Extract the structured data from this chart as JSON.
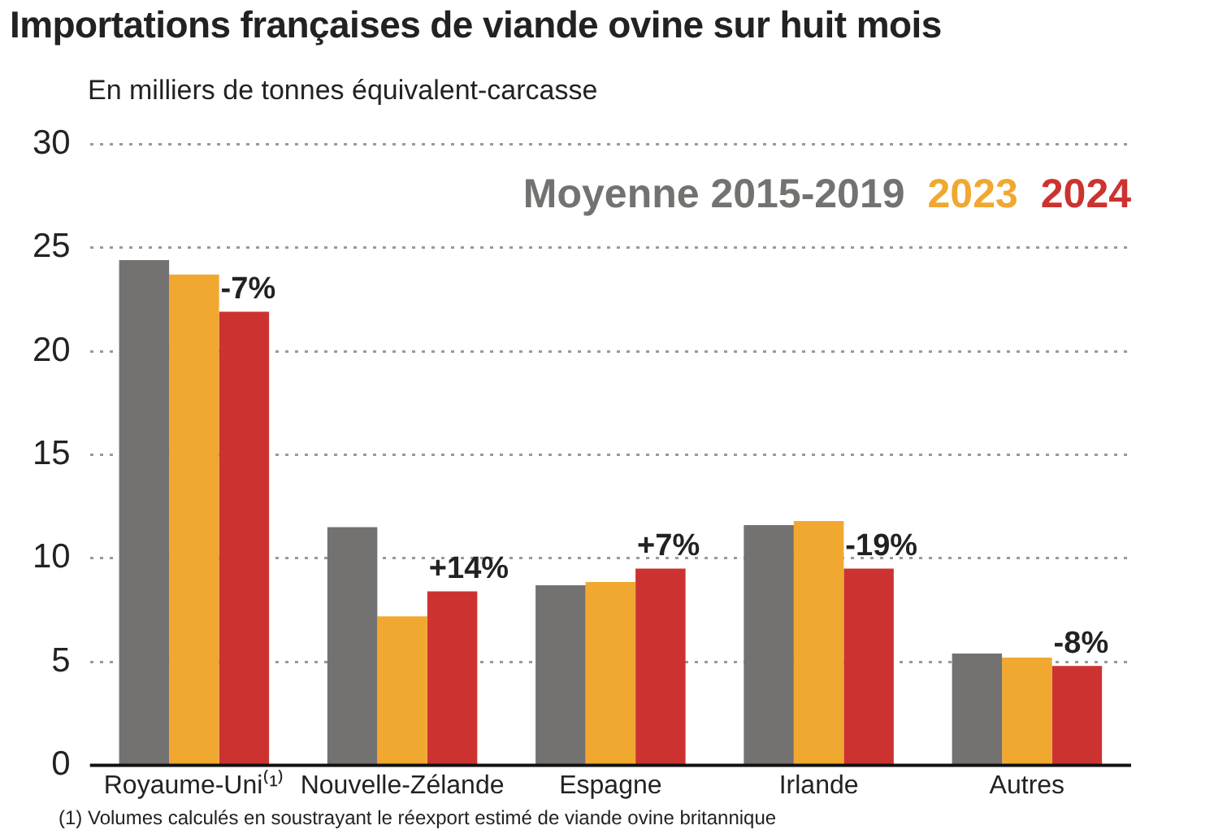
{
  "chart_data": {
    "type": "bar",
    "title": "Importations françaises de viande ovine sur huit mois",
    "subtitle": "En milliers de tonnes équivalent-carcasse",
    "categories": [
      "Royaume-Uni⁽¹⁾",
      "Nouvelle-Zélande",
      "Espagne",
      "Irlande",
      "Autres"
    ],
    "series": [
      {
        "name": "Moyenne 2015-2019",
        "color": "#737270",
        "values": [
          24.4,
          11.5,
          8.7,
          11.6,
          5.4
        ]
      },
      {
        "name": "2023",
        "color": "#f0a830",
        "values": [
          23.7,
          7.2,
          8.85,
          11.8,
          5.2
        ]
      },
      {
        "name": "2024",
        "color": "#cc3330",
        "values": [
          21.9,
          8.4,
          9.5,
          9.5,
          4.8
        ]
      }
    ],
    "ylim": [
      0,
      30
    ],
    "yticks": [
      0,
      5,
      10,
      15,
      20,
      25,
      30
    ],
    "grid": "y",
    "legend": "top right",
    "annotations": [
      "-7%",
      "+14%",
      "+7%",
      "-19%",
      "-8%",
      "(1) Volumes calculés en soustrayant le réexport estimé de viande ovine britannique"
    ]
  }
}
